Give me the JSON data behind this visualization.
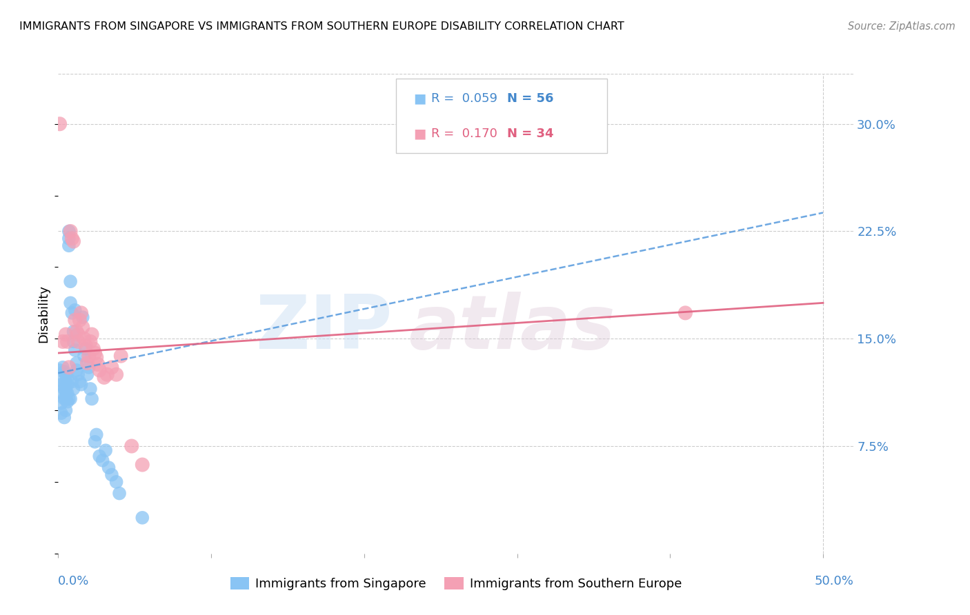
{
  "title": "IMMIGRANTS FROM SINGAPORE VS IMMIGRANTS FROM SOUTHERN EUROPE DISABILITY CORRELATION CHART",
  "source": "Source: ZipAtlas.com",
  "ylabel": "Disability",
  "xlim": [
    0.0,
    0.52
  ],
  "ylim": [
    0.0,
    0.335
  ],
  "yticks": [
    0.075,
    0.15,
    0.225,
    0.3
  ],
  "ytick_labels": [
    "7.5%",
    "15.0%",
    "22.5%",
    "30.0%"
  ],
  "color_singapore": "#89c4f4",
  "color_southern_europe": "#f4a0b4",
  "color_trendline_singapore": "#5599dd",
  "color_trendline_southern_europe": "#e06080",
  "color_blue": "#4488cc",
  "sg_x": [
    0.001,
    0.002,
    0.002,
    0.002,
    0.003,
    0.003,
    0.003,
    0.004,
    0.004,
    0.004,
    0.004,
    0.005,
    0.005,
    0.005,
    0.005,
    0.005,
    0.006,
    0.006,
    0.006,
    0.006,
    0.007,
    0.007,
    0.007,
    0.007,
    0.008,
    0.008,
    0.008,
    0.009,
    0.009,
    0.01,
    0.01,
    0.01,
    0.011,
    0.011,
    0.012,
    0.012,
    0.013,
    0.014,
    0.015,
    0.016,
    0.017,
    0.018,
    0.019,
    0.02,
    0.021,
    0.022,
    0.024,
    0.025,
    0.027,
    0.029,
    0.031,
    0.033,
    0.035,
    0.038,
    0.04,
    0.055
  ],
  "sg_y": [
    0.128,
    0.118,
    0.105,
    0.098,
    0.13,
    0.12,
    0.112,
    0.127,
    0.115,
    0.108,
    0.095,
    0.125,
    0.12,
    0.113,
    0.108,
    0.1,
    0.123,
    0.118,
    0.112,
    0.106,
    0.225,
    0.22,
    0.215,
    0.108,
    0.19,
    0.175,
    0.108,
    0.168,
    0.12,
    0.155,
    0.148,
    0.115,
    0.17,
    0.142,
    0.133,
    0.128,
    0.125,
    0.12,
    0.118,
    0.165,
    0.138,
    0.143,
    0.125,
    0.13,
    0.115,
    0.108,
    0.078,
    0.083,
    0.068,
    0.065,
    0.072,
    0.06,
    0.055,
    0.05,
    0.042,
    0.025
  ],
  "se_x": [
    0.001,
    0.003,
    0.005,
    0.006,
    0.007,
    0.008,
    0.009,
    0.01,
    0.011,
    0.012,
    0.013,
    0.013,
    0.014,
    0.015,
    0.016,
    0.017,
    0.018,
    0.019,
    0.02,
    0.021,
    0.022,
    0.023,
    0.024,
    0.025,
    0.026,
    0.027,
    0.03,
    0.032,
    0.035,
    0.038,
    0.041,
    0.048,
    0.055,
    0.41
  ],
  "se_y": [
    0.3,
    0.148,
    0.153,
    0.148,
    0.13,
    0.225,
    0.22,
    0.218,
    0.163,
    0.155,
    0.153,
    0.148,
    0.163,
    0.168,
    0.158,
    0.15,
    0.145,
    0.133,
    0.138,
    0.148,
    0.153,
    0.143,
    0.14,
    0.137,
    0.132,
    0.128,
    0.123,
    0.125,
    0.13,
    0.125,
    0.138,
    0.075,
    0.062,
    0.168
  ],
  "sg_trend_x": [
    0.0,
    0.5
  ],
  "sg_trend_y": [
    0.126,
    0.238
  ],
  "se_trend_x": [
    0.0,
    0.5
  ],
  "se_trend_y": [
    0.14,
    0.175
  ]
}
